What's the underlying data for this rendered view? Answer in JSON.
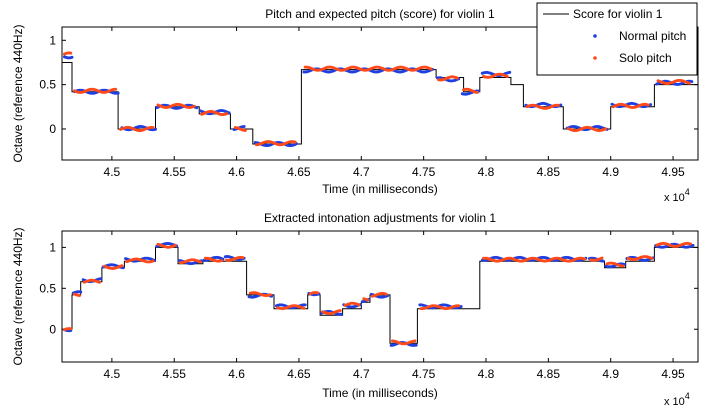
{
  "chart_data": [
    {
      "type": "line",
      "title": "Pitch and expected pitch (score) for violin 1",
      "xlabel": "Time (in milliseconds)",
      "ylabel": "Octave (reference 440Hz)",
      "x_multiplier_label": "x 10",
      "x_multiplier_exp": "4",
      "xlim": [
        4.46,
        4.97
      ],
      "ylim": [
        -0.35,
        1.15
      ],
      "xticks": [
        4.5,
        4.55,
        4.6,
        4.65,
        4.7,
        4.75,
        4.8,
        4.85,
        4.9,
        4.95
      ],
      "xtick_labels": [
        "4.5",
        "4.55",
        "4.6",
        "4.65",
        "4.7",
        "4.75",
        "4.8",
        "4.85",
        "4.9",
        "4.95"
      ],
      "yticks": [
        0,
        0.5,
        1
      ],
      "ytick_labels": [
        "0",
        "0.5",
        "1"
      ],
      "legend": {
        "placement": "top-right",
        "entries": [
          {
            "label": "Score for violin 1",
            "style": "line",
            "color": "#000000"
          },
          {
            "label": "Normal pitch",
            "style": "dot",
            "color": "#1f3fe0"
          },
          {
            "label": "Solo pitch",
            "style": "dot",
            "color": "#ff4a1a"
          }
        ]
      },
      "series": [
        {
          "name": "Score for violin 1",
          "style": "step",
          "color": "#000000",
          "segments": [
            {
              "x0": 4.46,
              "x1": 4.468,
              "y": 0.75
            },
            {
              "x0": 4.468,
              "x1": 4.505,
              "y": 0.42
            },
            {
              "x0": 4.505,
              "x1": 4.535,
              "y": 0.0
            },
            {
              "x0": 4.535,
              "x1": 4.57,
              "y": 0.25
            },
            {
              "x0": 4.57,
              "x1": 4.595,
              "y": 0.17
            },
            {
              "x0": 4.595,
              "x1": 4.613,
              "y": 0.0
            },
            {
              "x0": 4.613,
              "x1": 4.652,
              "y": -0.17
            },
            {
              "x0": 4.652,
              "x1": 4.76,
              "y": 0.67
            },
            {
              "x0": 4.76,
              "x1": 4.782,
              "y": 0.58
            },
            {
              "x0": 4.782,
              "x1": 4.795,
              "y": 0.42
            },
            {
              "x0": 4.795,
              "x1": 4.82,
              "y": 0.58
            },
            {
              "x0": 4.82,
              "x1": 4.83,
              "y": 0.5
            },
            {
              "x0": 4.83,
              "x1": 4.862,
              "y": 0.25
            },
            {
              "x0": 4.862,
              "x1": 4.9,
              "y": 0.0
            },
            {
              "x0": 4.9,
              "x1": 4.935,
              "y": 0.25
            },
            {
              "x0": 4.935,
              "x1": 4.97,
              "y": 0.5
            }
          ]
        },
        {
          "name": "Normal pitch",
          "style": "dots",
          "color": "#1f3fe0",
          "segments": [
            {
              "x0": 4.462,
              "x1": 4.468,
              "y": 0.82
            },
            {
              "x0": 4.47,
              "x1": 4.505,
              "y": 0.42
            },
            {
              "x0": 4.508,
              "x1": 4.535,
              "y": 0.01
            },
            {
              "x0": 4.536,
              "x1": 4.568,
              "y": 0.25
            },
            {
              "x0": 4.571,
              "x1": 4.594,
              "y": 0.19
            },
            {
              "x0": 4.598,
              "x1": 4.606,
              "y": 0.01
            },
            {
              "x0": 4.615,
              "x1": 4.648,
              "y": -0.17
            },
            {
              "x0": 4.654,
              "x1": 4.757,
              "y": 0.66
            },
            {
              "x0": 4.761,
              "x1": 4.778,
              "y": 0.56
            },
            {
              "x0": 4.781,
              "x1": 4.794,
              "y": 0.41
            },
            {
              "x0": 4.797,
              "x1": 4.819,
              "y": 0.62
            },
            {
              "x0": 4.832,
              "x1": 4.86,
              "y": 0.27
            },
            {
              "x0": 4.865,
              "x1": 4.897,
              "y": 0.01
            },
            {
              "x0": 4.901,
              "x1": 4.932,
              "y": 0.27
            },
            {
              "x0": 4.937,
              "x1": 4.965,
              "y": 0.52
            }
          ]
        },
        {
          "name": "Solo pitch",
          "style": "dots",
          "color": "#ff4a1a",
          "segments": [
            {
              "x0": 4.462,
              "x1": 4.467,
              "y": 0.84
            },
            {
              "x0": 4.47,
              "x1": 4.503,
              "y": 0.43
            },
            {
              "x0": 4.507,
              "x1": 4.533,
              "y": 0.0
            },
            {
              "x0": 4.537,
              "x1": 4.566,
              "y": 0.26
            },
            {
              "x0": 4.572,
              "x1": 4.592,
              "y": 0.18
            },
            {
              "x0": 4.599,
              "x1": 4.607,
              "y": 0.0
            },
            {
              "x0": 4.616,
              "x1": 4.647,
              "y": -0.16
            },
            {
              "x0": 4.655,
              "x1": 4.756,
              "y": 0.68
            },
            {
              "x0": 4.762,
              "x1": 4.777,
              "y": 0.57
            },
            {
              "x0": 4.782,
              "x1": 4.793,
              "y": 0.43
            },
            {
              "x0": 4.798,
              "x1": 4.817,
              "y": 0.6
            },
            {
              "x0": 4.833,
              "x1": 4.858,
              "y": 0.25
            },
            {
              "x0": 4.866,
              "x1": 4.896,
              "y": 0.0
            },
            {
              "x0": 4.902,
              "x1": 4.93,
              "y": 0.26
            },
            {
              "x0": 4.938,
              "x1": 4.963,
              "y": 0.53
            }
          ]
        }
      ]
    },
    {
      "type": "line",
      "title": "Extracted intonation adjustments for violin 1",
      "xlabel": "Time (in milliseconds)",
      "ylabel": "Octave (reference 440Hz)",
      "x_multiplier_label": "x 10",
      "x_multiplier_exp": "4",
      "xlim": [
        4.46,
        4.97
      ],
      "ylim": [
        -0.4,
        1.2
      ],
      "xticks": [
        4.5,
        4.55,
        4.6,
        4.65,
        4.7,
        4.75,
        4.8,
        4.85,
        4.9,
        4.95
      ],
      "xtick_labels": [
        "4.5",
        "4.55",
        "4.6",
        "4.65",
        "4.7",
        "4.75",
        "4.8",
        "4.85",
        "4.9",
        "4.95"
      ],
      "yticks": [
        0,
        0.5,
        1
      ],
      "ytick_labels": [
        "0",
        "0.5",
        "1"
      ],
      "series": [
        {
          "name": "Score for violin 1",
          "style": "step",
          "color": "#000000",
          "segments": [
            {
              "x0": 4.46,
              "x1": 4.468,
              "y": 0.0
            },
            {
              "x0": 4.468,
              "x1": 4.475,
              "y": 0.42
            },
            {
              "x0": 4.475,
              "x1": 4.492,
              "y": 0.58
            },
            {
              "x0": 4.492,
              "x1": 4.51,
              "y": 0.75
            },
            {
              "x0": 4.51,
              "x1": 4.535,
              "y": 0.83
            },
            {
              "x0": 4.535,
              "x1": 4.553,
              "y": 1.0
            },
            {
              "x0": 4.553,
              "x1": 4.573,
              "y": 0.8
            },
            {
              "x0": 4.573,
              "x1": 4.59,
              "y": 0.83
            },
            {
              "x0": 4.59,
              "x1": 4.608,
              "y": 0.83
            },
            {
              "x0": 4.608,
              "x1": 4.63,
              "y": 0.42
            },
            {
              "x0": 4.63,
              "x1": 4.657,
              "y": 0.25
            },
            {
              "x0": 4.657,
              "x1": 4.667,
              "y": 0.42
            },
            {
              "x0": 4.667,
              "x1": 4.685,
              "y": 0.17
            },
            {
              "x0": 4.685,
              "x1": 4.7,
              "y": 0.25
            },
            {
              "x0": 4.7,
              "x1": 4.707,
              "y": 0.33
            },
            {
              "x0": 4.707,
              "x1": 4.723,
              "y": 0.42
            },
            {
              "x0": 4.723,
              "x1": 4.745,
              "y": -0.17
            },
            {
              "x0": 4.745,
              "x1": 4.782,
              "y": 0.25
            },
            {
              "x0": 4.782,
              "x1": 4.795,
              "y": 0.25
            },
            {
              "x0": 4.795,
              "x1": 4.882,
              "y": 0.83
            },
            {
              "x0": 4.882,
              "x1": 4.895,
              "y": 0.83
            },
            {
              "x0": 4.895,
              "x1": 4.912,
              "y": 0.75
            },
            {
              "x0": 4.912,
              "x1": 4.935,
              "y": 0.83
            },
            {
              "x0": 4.935,
              "x1": 4.97,
              "y": 1.0
            }
          ]
        },
        {
          "name": "Normal pitch",
          "style": "dots",
          "color": "#1f3fe0",
          "segments": [
            {
              "x0": 4.462,
              "x1": 4.467,
              "y": 0.0
            },
            {
              "x0": 4.469,
              "x1": 4.475,
              "y": 0.44
            },
            {
              "x0": 4.477,
              "x1": 4.491,
              "y": 0.6
            },
            {
              "x0": 4.493,
              "x1": 4.509,
              "y": 0.77
            },
            {
              "x0": 4.511,
              "x1": 4.534,
              "y": 0.85
            },
            {
              "x0": 4.536,
              "x1": 4.552,
              "y": 1.03
            },
            {
              "x0": 4.554,
              "x1": 4.572,
              "y": 0.82
            },
            {
              "x0": 4.574,
              "x1": 4.589,
              "y": 0.86
            },
            {
              "x0": 4.591,
              "x1": 4.606,
              "y": 0.87
            },
            {
              "x0": 4.61,
              "x1": 4.628,
              "y": 0.41
            },
            {
              "x0": 4.632,
              "x1": 4.655,
              "y": 0.28
            },
            {
              "x0": 4.658,
              "x1": 4.666,
              "y": 0.44
            },
            {
              "x0": 4.668,
              "x1": 4.684,
              "y": 0.2
            },
            {
              "x0": 4.686,
              "x1": 4.699,
              "y": 0.29
            },
            {
              "x0": 4.701,
              "x1": 4.706,
              "y": 0.35
            },
            {
              "x0": 4.708,
              "x1": 4.721,
              "y": 0.41
            },
            {
              "x0": 4.724,
              "x1": 4.744,
              "y": -0.18
            },
            {
              "x0": 4.747,
              "x1": 4.78,
              "y": 0.28
            },
            {
              "x0": 4.797,
              "x1": 4.88,
              "y": 0.86
            },
            {
              "x0": 4.883,
              "x1": 4.894,
              "y": 0.85
            },
            {
              "x0": 4.896,
              "x1": 4.911,
              "y": 0.78
            },
            {
              "x0": 4.913,
              "x1": 4.934,
              "y": 0.86
            },
            {
              "x0": 4.936,
              "x1": 4.966,
              "y": 1.02
            }
          ]
        },
        {
          "name": "Solo pitch",
          "style": "dots",
          "color": "#ff4a1a",
          "segments": [
            {
              "x0": 4.462,
              "x1": 4.467,
              "y": -0.01
            },
            {
              "x0": 4.47,
              "x1": 4.474,
              "y": 0.43
            },
            {
              "x0": 4.478,
              "x1": 4.49,
              "y": 0.58
            },
            {
              "x0": 4.494,
              "x1": 4.508,
              "y": 0.76
            },
            {
              "x0": 4.512,
              "x1": 4.533,
              "y": 0.84
            },
            {
              "x0": 4.537,
              "x1": 4.551,
              "y": 1.02
            },
            {
              "x0": 4.555,
              "x1": 4.571,
              "y": 0.83
            },
            {
              "x0": 4.575,
              "x1": 4.588,
              "y": 0.85
            },
            {
              "x0": 4.592,
              "x1": 4.605,
              "y": 0.86
            },
            {
              "x0": 4.611,
              "x1": 4.627,
              "y": 0.43
            },
            {
              "x0": 4.633,
              "x1": 4.654,
              "y": 0.27
            },
            {
              "x0": 4.659,
              "x1": 4.665,
              "y": 0.43
            },
            {
              "x0": 4.669,
              "x1": 4.683,
              "y": 0.21
            },
            {
              "x0": 4.687,
              "x1": 4.698,
              "y": 0.3
            },
            {
              "x0": 4.702,
              "x1": 4.705,
              "y": 0.36
            },
            {
              "x0": 4.709,
              "x1": 4.72,
              "y": 0.42
            },
            {
              "x0": 4.725,
              "x1": 4.743,
              "y": -0.16
            },
            {
              "x0": 4.748,
              "x1": 4.778,
              "y": 0.27
            },
            {
              "x0": 4.798,
              "x1": 4.879,
              "y": 0.85
            },
            {
              "x0": 4.884,
              "x1": 4.893,
              "y": 0.86
            },
            {
              "x0": 4.897,
              "x1": 4.91,
              "y": 0.79
            },
            {
              "x0": 4.914,
              "x1": 4.933,
              "y": 0.87
            },
            {
              "x0": 4.937,
              "x1": 4.964,
              "y": 1.03
            }
          ]
        }
      ]
    }
  ]
}
